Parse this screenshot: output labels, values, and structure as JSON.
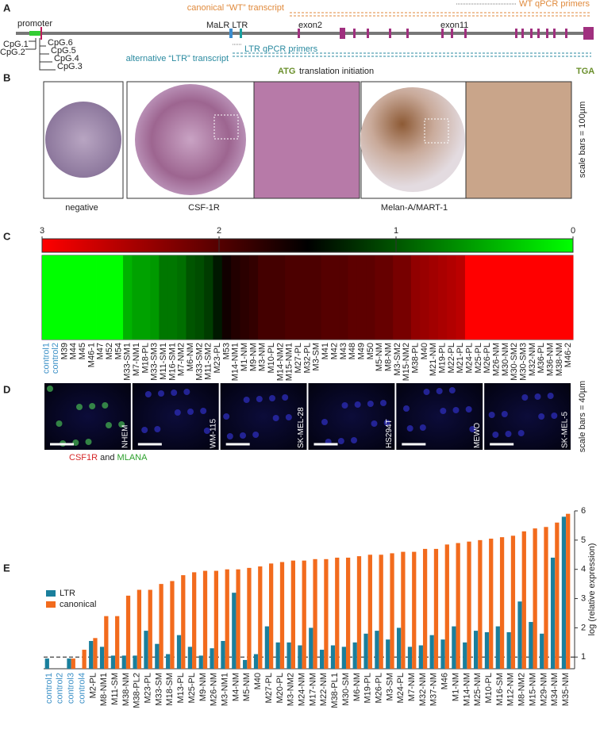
{
  "panel_labels": [
    "A",
    "B",
    "C",
    "D",
    "E"
  ],
  "panel_a": {
    "promoter": "promoter",
    "cpg": [
      "CpG.1",
      "CpG.2",
      "CpG.6",
      "CpG.5",
      "CpG.4",
      "CpG.3"
    ],
    "malr_ltr": "MaLR LTR",
    "exon2": "exon2",
    "exon11": "exon11",
    "canonical_transcript": "canonical “WT” transcript",
    "wt_primers": "WT qPCR primers",
    "alternative_transcript": "alternative “LTR” transcript",
    "ltr_primers": "LTR qPCR primers",
    "atg": "ATG",
    "translation": "translation initiation",
    "tga": "TGA"
  },
  "panel_b": {
    "captions": [
      "negative",
      "CSF-1R",
      "Melan-A/MART-1"
    ],
    "scale_note": "scale bars = 100µm"
  },
  "panel_d": {
    "cell_lines": [
      "NHEM",
      "WM-115",
      "SK-MEL-28",
      "HS294T",
      "MEWO",
      "SK-MEL-5"
    ],
    "scale_note": "scale bars = 40µm",
    "stain_parts": [
      {
        "text": "CSF1R",
        "color": "#d62728"
      },
      {
        "text": "and",
        "color": "#222222"
      },
      {
        "text": "MLANA",
        "color": "#2ca02c"
      }
    ]
  },
  "chart_data": [
    {
      "type": "heatmap",
      "categories": [
        "control1",
        "control2",
        "M39",
        "M44",
        "M45",
        "M46-1",
        "M47",
        "M52",
        "M54",
        "M33-SM1",
        "M7-NM1",
        "M18-PL",
        "M33-SM3",
        "M11-SM1",
        "M16-SM1",
        "M7-NM2",
        "M6-NM",
        "M33-SM2",
        "M11-SM2",
        "M23-PL",
        "M53",
        "M14-NM1",
        "M1-NM",
        "M9-NM",
        "M3-NM",
        "M10-PL",
        "M14-NM2",
        "M15-NM1",
        "M27-PL",
        "M32-PL",
        "M3-SM",
        "M41",
        "M42",
        "M43",
        "M48",
        "M49",
        "M50",
        "M5-NM",
        "M8-NM",
        "M3-SM2",
        "M15-NM2",
        "M38-PL",
        "M40",
        "M21-NM",
        "M19-PL",
        "M22-PL",
        "M21-PL",
        "M24-PL",
        "M25-PL",
        "M26-PL",
        "M26-NM",
        "M30-NM",
        "M30-SM2",
        "M30-SM3",
        "M32-NM",
        "M36-PL",
        "M36-NM",
        "M38-NM",
        "M46-2"
      ],
      "values": [
        0,
        0,
        0,
        0,
        0,
        0,
        0,
        0,
        0,
        0.45,
        0.55,
        0.55,
        0.6,
        0.8,
        0.8,
        0.85,
        1.0,
        1.05,
        1.15,
        1.35,
        1.6,
        1.7,
        1.75,
        1.8,
        1.9,
        1.9,
        1.9,
        1.95,
        1.95,
        1.95,
        1.95,
        2.0,
        2.0,
        2.0,
        2.05,
        2.05,
        2.05,
        2.1,
        2.1,
        2.2,
        2.2,
        2.35,
        2.4,
        2.45,
        2.5,
        2.55,
        2.6,
        3,
        3,
        3,
        3,
        3,
        3,
        3,
        3,
        3,
        3,
        3,
        3
      ],
      "clim": [
        3,
        0
      ],
      "cticks": [
        3,
        2,
        1,
        0
      ],
      "colormap": [
        "#ff0000",
        "#000000",
        "#00ff00"
      ],
      "highlight": {
        "indices": [
          0,
          1
        ],
        "color": "#3a8fc6"
      }
    },
    {
      "type": "bar",
      "categories": [
        "control1",
        "control2",
        "control3",
        "control4",
        "M2-PL",
        "M8-NM1",
        "M11-SM",
        "M38-NM",
        "M38-PL2",
        "M23-PL",
        "M33-SM",
        "M18-SM",
        "M13-PL",
        "M25-PL",
        "M9-NM",
        "M26-NM",
        "M3-NM1",
        "M4-NM",
        "M5-NM",
        "M40",
        "M27-PL",
        "M20-PL",
        "M3-NM2",
        "M24-NM",
        "M17-NM",
        "M22-NM",
        "M38-PL1",
        "M30-SM",
        "M6-NM",
        "M19-PL",
        "M26-PL",
        "M3-SM",
        "M24-PL",
        "M7-NM",
        "M32-NM",
        "M37-NM",
        "M46",
        "M1-NM",
        "M14-NM",
        "M25-NM",
        "M10-PL",
        "M16-SM",
        "M12-NM",
        "M8-NM2",
        "M15-NM",
        "M29-NM",
        "M34-NM",
        "M35-NM"
      ],
      "series": [
        {
          "name": "LTR",
          "color": "#1a7f9c",
          "values": [
            0.95,
            null,
            0.95,
            null,
            1.55,
            1.35,
            1.05,
            1.05,
            1.05,
            1.9,
            1.45,
            1.1,
            1.75,
            1.35,
            1.05,
            1.3,
            1.55,
            3.2,
            0.9,
            1.1,
            2.05,
            1.5,
            1.5,
            1.4,
            2.0,
            1.25,
            1.4,
            1.35,
            1.5,
            1.8,
            1.9,
            1.6,
            2.0,
            1.35,
            1.4,
            1.75,
            1.6,
            2.05,
            1.5,
            1.9,
            1.85,
            2.05,
            1.85,
            2.9,
            2.2,
            1.8,
            4.4,
            5.8
          ]
        },
        {
          "name": "canonical",
          "color": "#f26b1d",
          "values": [
            null,
            null,
            0.95,
            1.25,
            1.65,
            2.4,
            2.4,
            3.1,
            3.3,
            3.3,
            3.5,
            3.6,
            3.8,
            3.9,
            3.95,
            3.95,
            4.0,
            4.0,
            4.05,
            4.1,
            4.2,
            4.25,
            4.3,
            4.3,
            4.35,
            4.35,
            4.4,
            4.4,
            4.45,
            4.5,
            4.5,
            4.55,
            4.6,
            4.6,
            4.7,
            4.7,
            4.85,
            4.9,
            4.95,
            5.0,
            5.05,
            5.1,
            5.15,
            5.3,
            5.4,
            5.45,
            5.6,
            5.9
          ]
        }
      ],
      "ylim": [
        0.6,
        6
      ],
      "yticks": [
        1,
        2,
        3,
        4,
        5,
        6
      ],
      "y_label": "log (relative expression)",
      "reference_line": 1,
      "legend": "upper-left",
      "highlight": {
        "indices": [
          0,
          1,
          2,
          3
        ],
        "color": "#3a8fc6"
      }
    }
  ]
}
